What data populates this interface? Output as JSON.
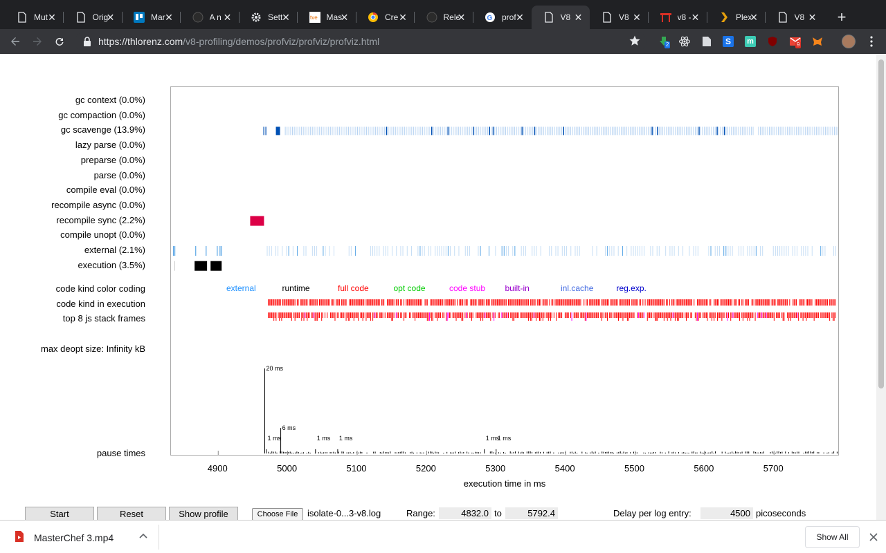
{
  "browser": {
    "tabs": [
      {
        "title": "Mut",
        "icon": "document-icon"
      },
      {
        "title": "Orig",
        "icon": "document-icon"
      },
      {
        "title": "Mar",
        "icon": "board-icon"
      },
      {
        "title": "A n",
        "icon": "github-icon"
      },
      {
        "title": "Sett",
        "icon": "gear-icon"
      },
      {
        "title": "Mas",
        "icon": "tve-icon"
      },
      {
        "title": "Cre",
        "icon": "chrome-icon"
      },
      {
        "title": "Rele",
        "icon": "github-icon"
      },
      {
        "title": "prof",
        "icon": "google-icon"
      },
      {
        "title": "V8",
        "icon": "document-icon"
      },
      {
        "title": "V8",
        "icon": "document-icon"
      },
      {
        "title": "v8 -",
        "icon": "gate-icon"
      },
      {
        "title": "Plex",
        "icon": "plex-icon"
      },
      {
        "title": "V8",
        "icon": "document-icon"
      }
    ],
    "active_tab": 9,
    "url_domain": "https://thlorenz.com",
    "url_path": "/v8-profiling/demos/profviz/profviz/profviz.html",
    "extension_badges": {
      "downloads": "2",
      "gmail": "9"
    }
  },
  "profile": {
    "rows": [
      "gc context (0.0%)",
      "gc compaction (0.0%)",
      "gc scavenge (13.9%)",
      "lazy parse (0.0%)",
      "preparse (0.0%)",
      "parse (0.0%)",
      "compile eval (0.0%)",
      "recompile async (0.0%)",
      "recompile sync (2.2%)",
      "compile unopt (0.0%)",
      "external (2.1%)",
      "execution (3.5%)"
    ],
    "code_kind_color_coding_label": "code kind color coding",
    "code_kind_in_execution_label": "code kind in execution",
    "top_stack_frames_label": "top 8 js stack frames",
    "max_deopt_label": "max deopt size: Infinity kB",
    "pause_times_label": "pause times",
    "legend": [
      {
        "label": "external",
        "color": "#1e90ff"
      },
      {
        "label": "runtime",
        "color": "#000000"
      },
      {
        "label": "full code",
        "color": "#ff0000"
      },
      {
        "label": "opt code",
        "color": "#00cc00"
      },
      {
        "label": "code stub",
        "color": "#ff00ff"
      },
      {
        "label": "built-in",
        "color": "#9900cc"
      },
      {
        "label": "inl.cache",
        "color": "#4169e1"
      },
      {
        "label": "reg.exp.",
        "color": "#0000cc"
      }
    ],
    "pause_labels": [
      "20 ms",
      "6 ms",
      "1 ms",
      "1 ms",
      "1 ms",
      "1 ms",
      "1 ms"
    ],
    "x_axis_label": "execution time in ms"
  },
  "chart_data": {
    "type": "timeline",
    "x_ticks": [
      4900,
      5000,
      5100,
      5200,
      5300,
      5400,
      5500,
      5600,
      5700
    ],
    "x_range": [
      4832.0,
      5792.4
    ],
    "xlabel": "execution time in ms",
    "pauses_ms": [
      {
        "x": 4967,
        "ms": 20
      },
      {
        "x": 4990,
        "ms": 6
      },
      {
        "x": 4969,
        "ms": 1
      },
      {
        "x": 5040,
        "ms": 1
      },
      {
        "x": 5072,
        "ms": 1
      },
      {
        "x": 5283,
        "ms": 1
      },
      {
        "x": 5300,
        "ms": 1
      }
    ]
  },
  "controls": {
    "start_label": "Start",
    "reset_label": "Reset",
    "show_profile_label": "Show profile",
    "choose_file_label": "Choose File",
    "file_name": "isolate-0...3-v8.log",
    "range_label": "Range:",
    "range_from": "4832.0",
    "range_to_label": "to",
    "range_to": "5792.4",
    "delay_label": "Delay per log entry:",
    "delay_value": "4500",
    "delay_unit": "picoseconds"
  },
  "download": {
    "file_name": "MasterChef 3.mp4",
    "show_all_label": "Show All"
  }
}
